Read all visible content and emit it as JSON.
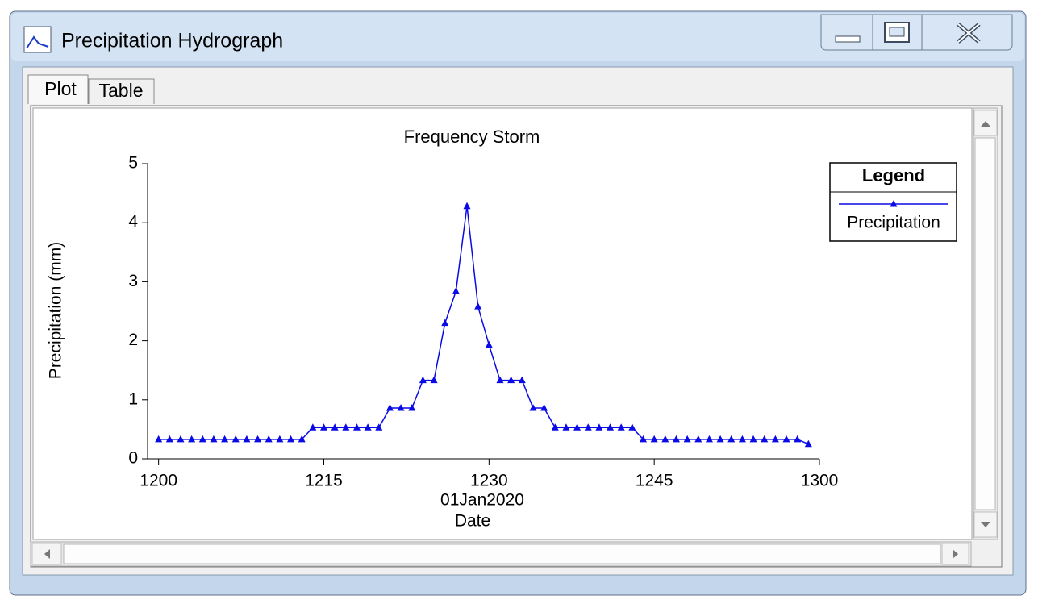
{
  "window": {
    "title": "Precipitation Hydrograph",
    "tabs": [
      "Plot",
      "Table"
    ]
  },
  "chart_data": {
    "type": "line",
    "title": "Frequency Storm",
    "x": [
      0,
      1,
      2,
      3,
      4,
      5,
      6,
      7,
      8,
      9,
      10,
      11,
      12,
      13,
      14,
      15,
      16,
      17,
      18,
      19,
      20,
      21,
      22,
      23,
      24,
      25,
      26,
      27,
      28,
      29,
      30,
      31,
      32,
      33,
      34,
      35,
      36,
      37,
      38,
      39,
      40,
      41,
      42,
      43,
      44,
      45,
      46,
      47,
      48,
      49,
      50,
      51,
      52,
      53,
      54,
      55,
      56,
      57,
      58,
      59
    ],
    "series": [
      {
        "name": "Precipitation",
        "color": "#0a0ae6",
        "values": [
          0.33,
          0.33,
          0.33,
          0.33,
          0.33,
          0.33,
          0.33,
          0.33,
          0.33,
          0.33,
          0.33,
          0.33,
          0.33,
          0.33,
          0.53,
          0.53,
          0.53,
          0.53,
          0.53,
          0.53,
          0.53,
          0.86,
          0.86,
          0.86,
          1.33,
          1.33,
          2.3,
          2.84,
          4.28,
          2.58,
          1.93,
          1.33,
          1.33,
          1.33,
          0.86,
          0.86,
          0.53,
          0.53,
          0.53,
          0.53,
          0.53,
          0.53,
          0.53,
          0.53,
          0.33,
          0.33,
          0.33,
          0.33,
          0.33,
          0.33,
          0.33,
          0.33,
          0.33,
          0.33,
          0.33,
          0.33,
          0.33,
          0.33,
          0.33,
          0.25
        ]
      }
    ],
    "xlim": [
      -1,
      60
    ],
    "xticks": [
      {
        "value": 0,
        "label": "1200"
      },
      {
        "value": 15,
        "label": "1215"
      },
      {
        "value": 30,
        "label": "1230"
      },
      {
        "value": 45,
        "label": "1245"
      },
      {
        "value": 60,
        "label": "1300"
      }
    ],
    "x_date": "01Jan2020",
    "xlabel": "Date",
    "ylim": [
      0,
      5
    ],
    "yticks": [
      0,
      1,
      2,
      3,
      4,
      5
    ],
    "ylabel": "Precipitation  (mm)",
    "legend": {
      "title": "Legend",
      "position": "upper right"
    }
  }
}
